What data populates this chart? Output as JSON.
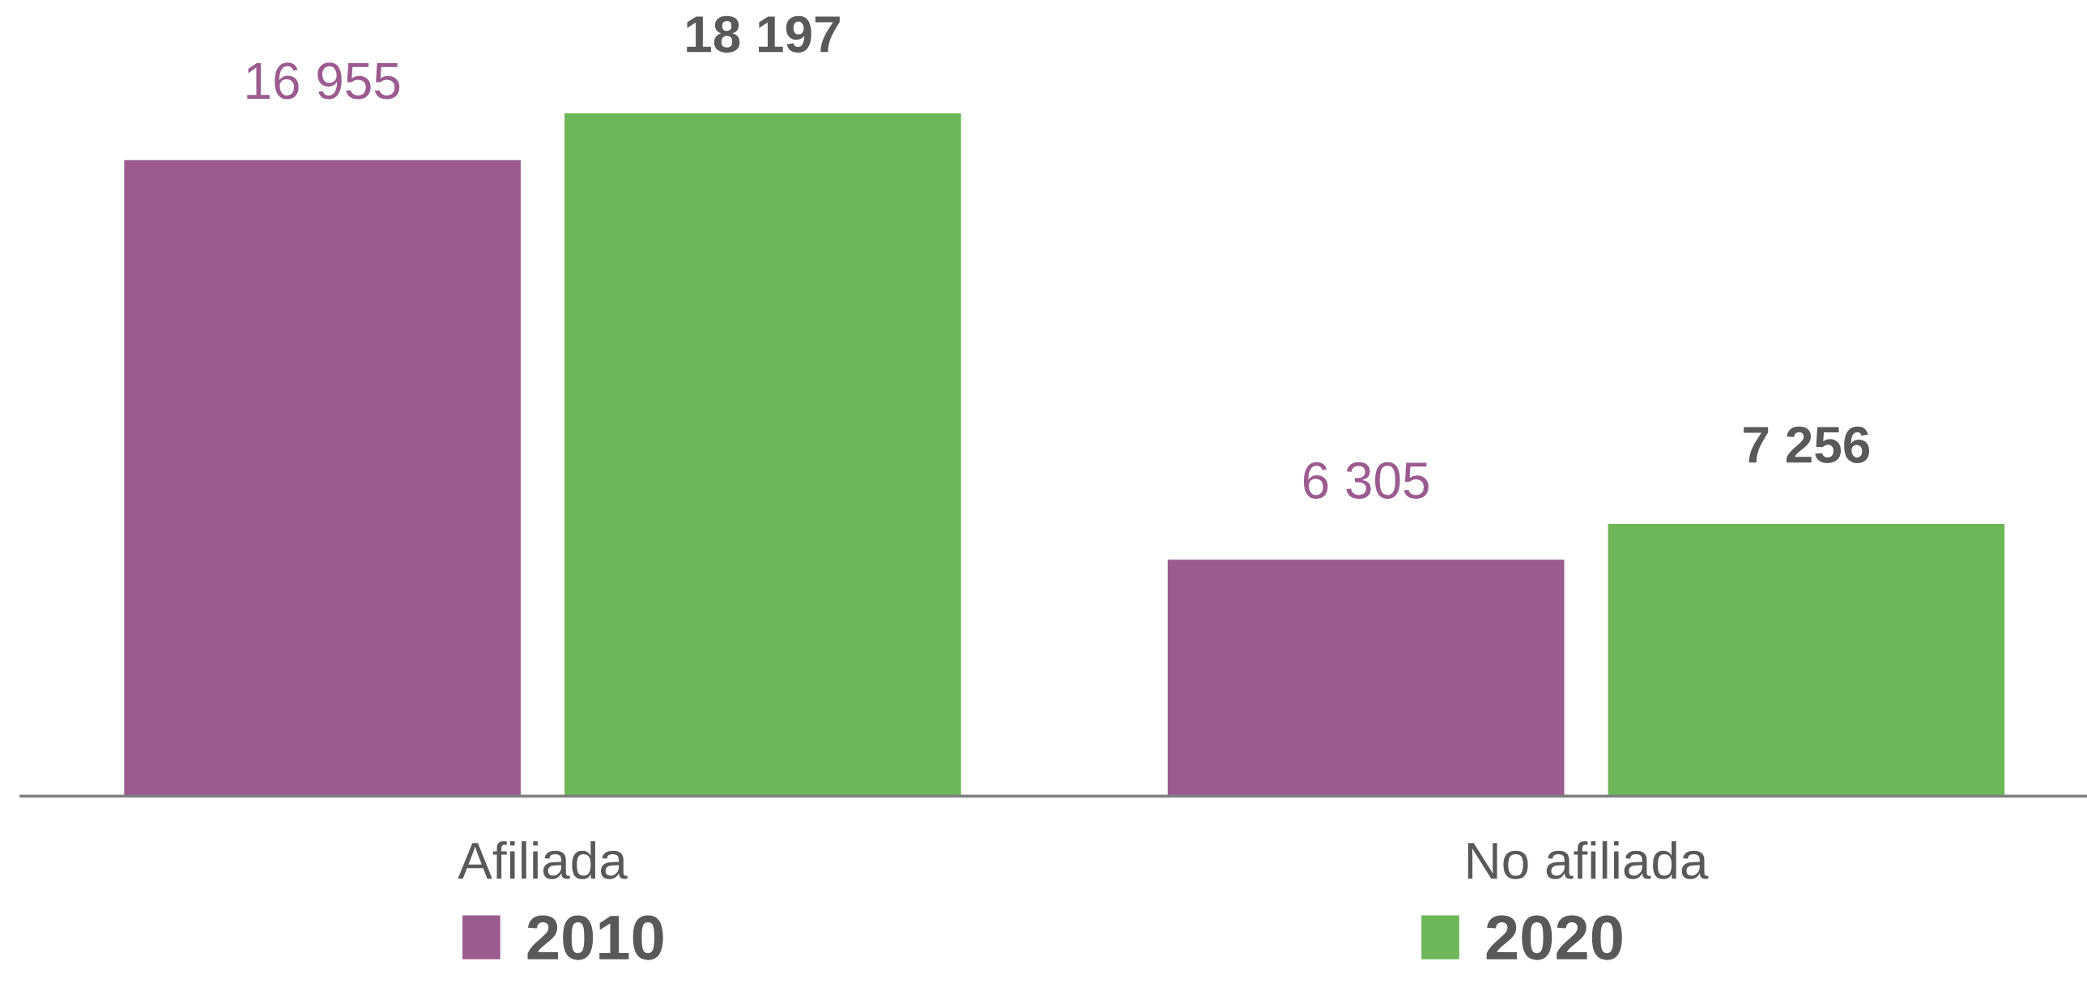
{
  "chart_data": {
    "type": "bar",
    "categories": [
      "Afiliada",
      "No afiliada"
    ],
    "series": [
      {
        "name": "2010",
        "color": "#9b5b8f",
        "values": [
          16955,
          6305
        ],
        "value_labels": [
          "16 955",
          "6 305"
        ]
      },
      {
        "name": "2020",
        "color": "#6db758",
        "values": [
          18197,
          7256
        ],
        "value_labels": [
          "18 197",
          "7 256"
        ]
      }
    ],
    "legend": "bottom",
    "grid": false
  }
}
